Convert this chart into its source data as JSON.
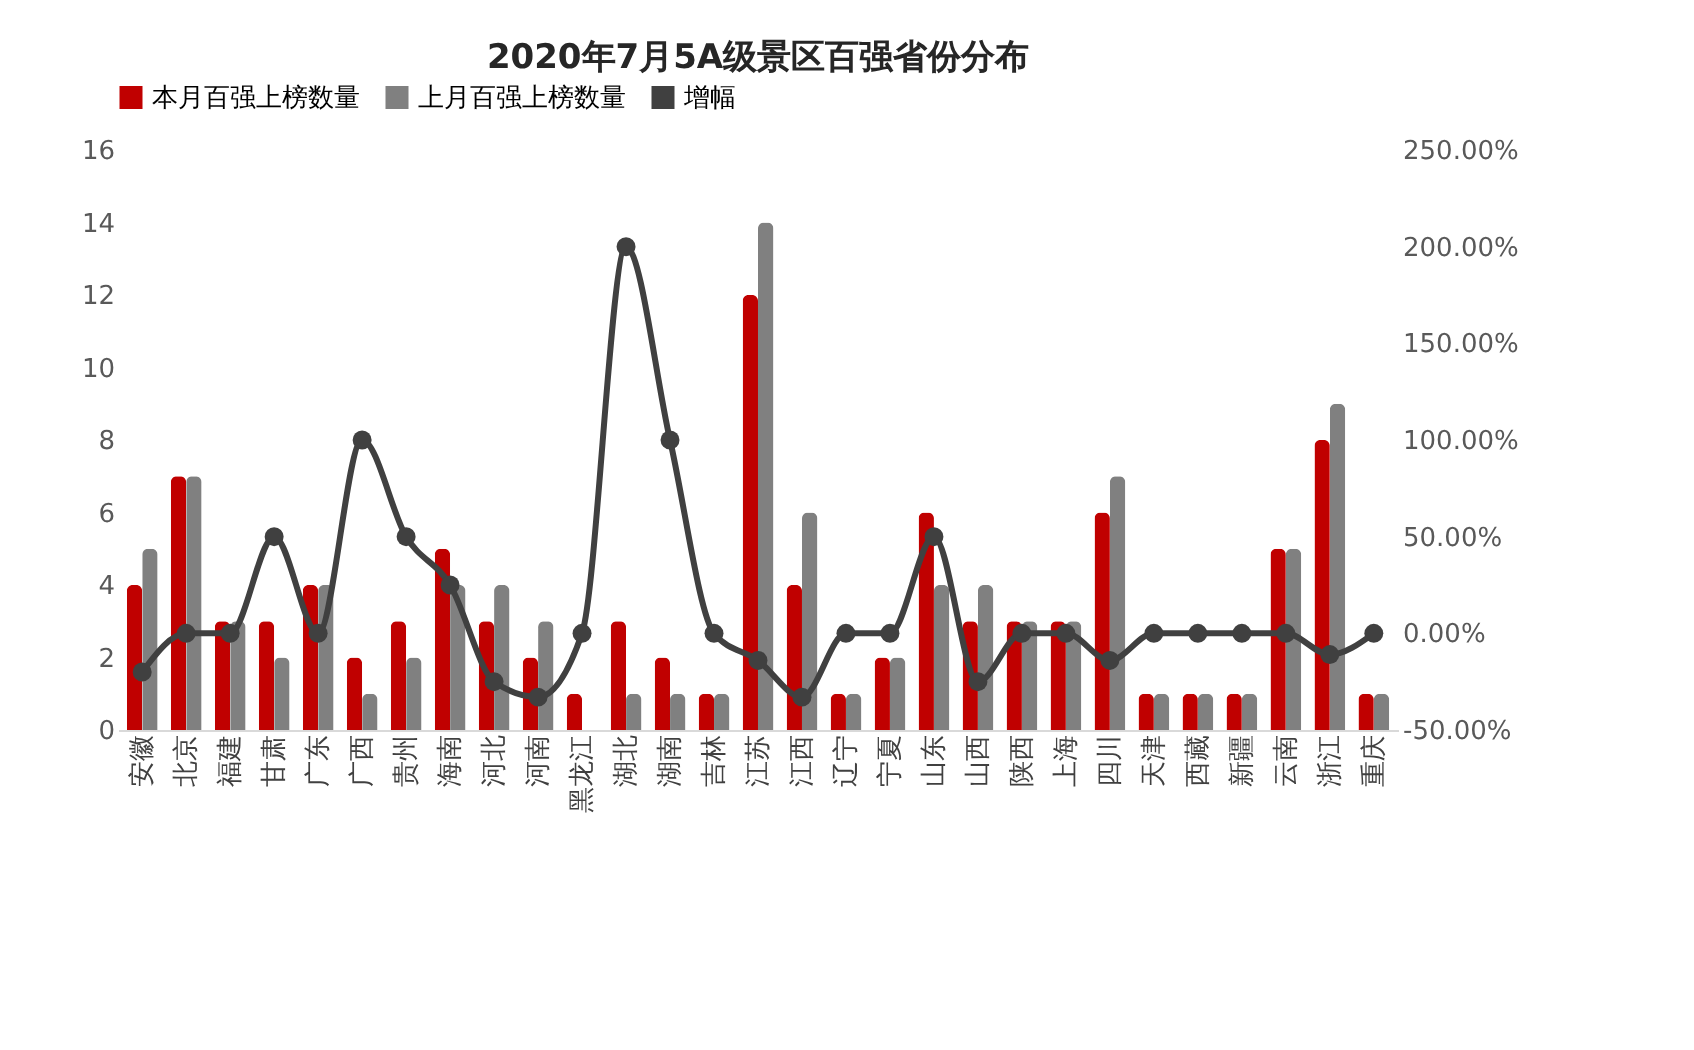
{
  "chart_data": {
    "type": "bar",
    "title": "2020年7月5A级景区百强省份分布",
    "categories": [
      "安徽",
      "北京",
      "福建",
      "甘肃",
      "广东",
      "广西",
      "贵州",
      "海南",
      "河北",
      "河南",
      "黑龙江",
      "湖北",
      "湖南",
      "吉林",
      "江苏",
      "江西",
      "辽宁",
      "宁夏",
      "山东",
      "山西",
      "陕西",
      "上海",
      "四川",
      "天津",
      "西藏",
      "新疆",
      "云南",
      "浙江",
      "重庆"
    ],
    "series": [
      {
        "name": "本月百强上榜数量",
        "color": "#c00000",
        "values": [
          4,
          7,
          3,
          3,
          4,
          2,
          3,
          5,
          3,
          2,
          1,
          3,
          2,
          1,
          12,
          4,
          1,
          2,
          6,
          3,
          3,
          3,
          6,
          1,
          1,
          1,
          5,
          8,
          1
        ]
      },
      {
        "name": "上月百强上榜数量",
        "color": "#808080",
        "values": [
          5,
          7,
          3,
          2,
          4,
          1,
          2,
          4,
          4,
          3,
          0,
          1,
          1,
          1,
          14,
          6,
          1,
          2,
          4,
          4,
          3,
          3,
          7,
          1,
          1,
          1,
          5,
          9,
          1
        ]
      },
      {
        "name": "增幅",
        "type": "line",
        "axis": "y2",
        "color": "#404040",
        "marker": "circle",
        "line_style": "solid",
        "values": [
          -20,
          0,
          0,
          50,
          0,
          100,
          50,
          25,
          -25,
          -33,
          0,
          200,
          100,
          0,
          -14,
          -33,
          0,
          0,
          50,
          -25,
          0,
          0,
          -14,
          0,
          0,
          0,
          0,
          -11,
          0
        ]
      }
    ],
    "ylim": [
      0,
      16
    ],
    "yticks": [
      0,
      2,
      4,
      6,
      8,
      10,
      12,
      14,
      16
    ],
    "y2lim": [
      -50,
      250
    ],
    "y2ticks": [
      {
        "value": -50,
        "label": "-50.00%"
      },
      {
        "value": 0,
        "label": "0.00%"
      },
      {
        "value": 50,
        "label": "50.00%"
      },
      {
        "value": 100,
        "label": "100.00%"
      },
      {
        "value": 150,
        "label": "150.00%"
      },
      {
        "value": 200,
        "label": "200.00%"
      },
      {
        "value": 250,
        "label": "250.00%"
      }
    ],
    "grid": false,
    "legend": "top"
  }
}
